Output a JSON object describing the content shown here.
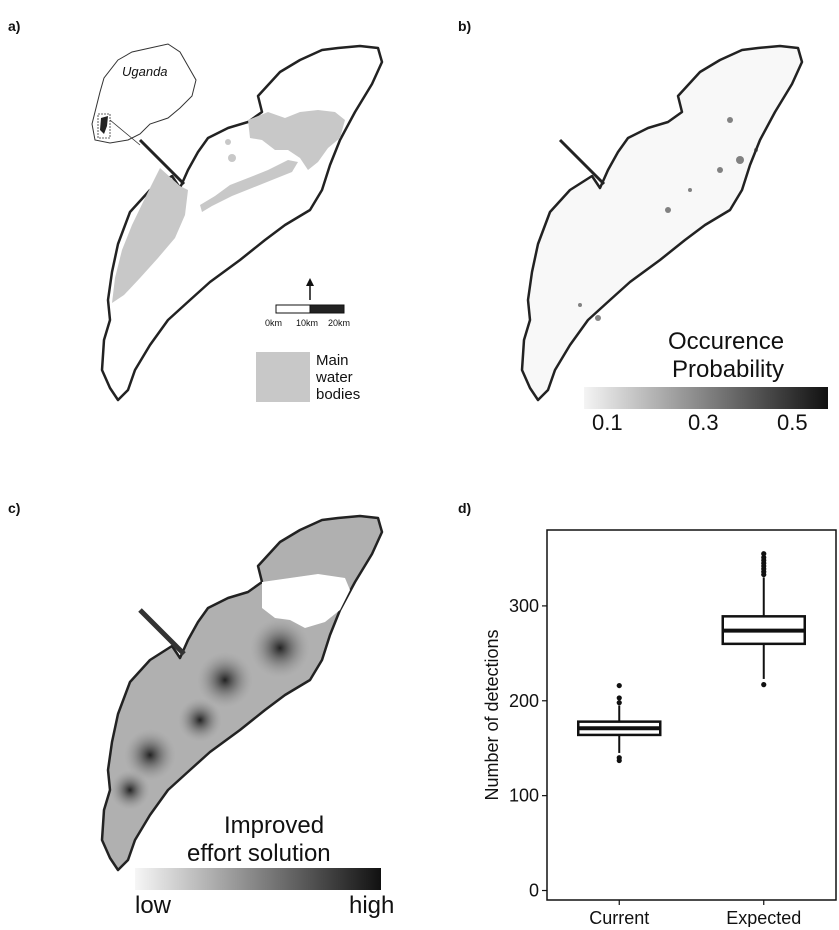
{
  "panels": {
    "a": {
      "label": "a)",
      "inset_label": "Uganda",
      "scale": [
        "0km",
        "10km",
        "20km"
      ],
      "legend_label": [
        "Main",
        "water",
        "bodies"
      ]
    },
    "b": {
      "label": "b)",
      "legend_title": [
        "Occurence",
        "Probability"
      ],
      "legend_ticks": [
        "0.1",
        "0.3",
        "0.5"
      ]
    },
    "c": {
      "label": "c)",
      "legend_title": [
        "Improved",
        "effort solution"
      ],
      "legend_low": "low",
      "legend_high": "high"
    },
    "d": {
      "label": "d)"
    }
  },
  "colors": {
    "water": "#c8c8c8",
    "outline": "#222222",
    "ink": "#111111"
  },
  "chart_data": {
    "type": "box",
    "categories": [
      "Current",
      "Expected"
    ],
    "ylabel": "Number of detections",
    "ylim": [
      -10,
      380
    ],
    "yticks": [
      0,
      100,
      200,
      300
    ],
    "boxes": [
      {
        "category": "Current",
        "whisker_low": 145,
        "q1": 164,
        "median": 171,
        "q3": 178,
        "whisker_high": 195,
        "outliers": [
          137,
          140,
          198,
          203,
          216
        ]
      },
      {
        "category": "Expected",
        "whisker_low": 223,
        "q1": 260,
        "median": 274,
        "q3": 289,
        "whisker_high": 330,
        "outliers": [
          217,
          333,
          336,
          339,
          342,
          345,
          348,
          351,
          355
        ]
      }
    ]
  }
}
